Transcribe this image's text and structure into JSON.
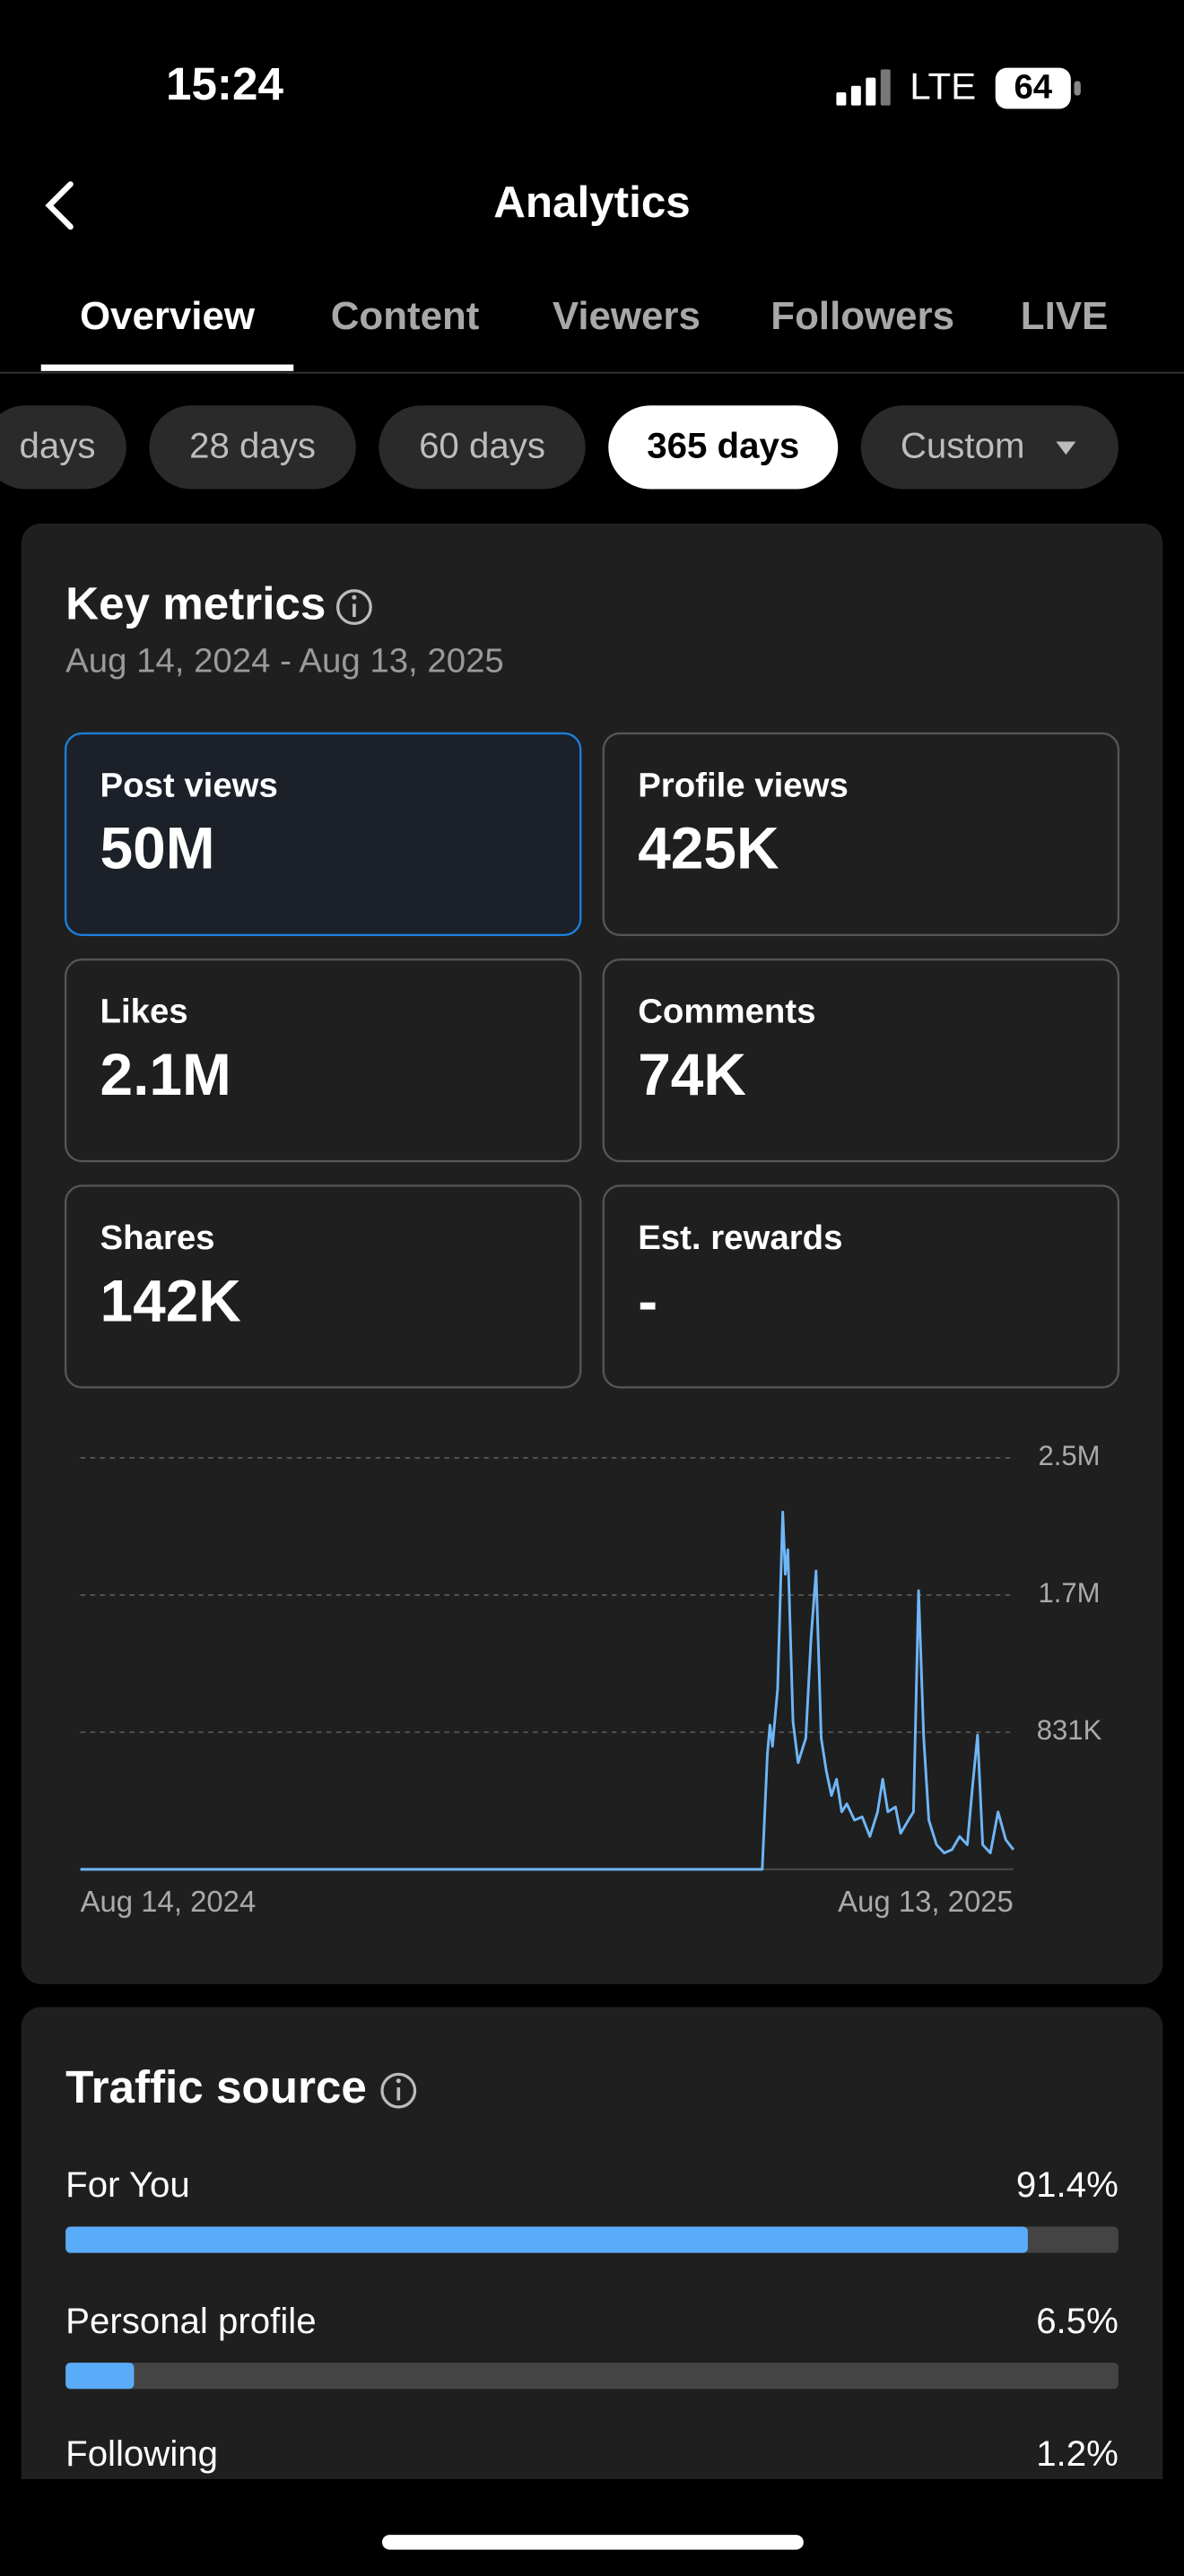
{
  "status_bar": {
    "time": "15:24",
    "network": "LTE",
    "battery": "64"
  },
  "header": {
    "title": "Analytics"
  },
  "tabs": [
    "Overview",
    "Content",
    "Viewers",
    "Followers",
    "LIVE"
  ],
  "ranges": [
    "days",
    "28 days",
    "60 days",
    "365 days",
    "Custom"
  ],
  "key_metrics": {
    "title": "Key metrics",
    "date_range": "Aug 14, 2024 - Aug 13, 2025",
    "cards": [
      {
        "label": "Post views",
        "value": "50M"
      },
      {
        "label": "Profile views",
        "value": "425K"
      },
      {
        "label": "Likes",
        "value": "2.1M"
      },
      {
        "label": "Comments",
        "value": "74K"
      },
      {
        "label": "Shares",
        "value": "142K"
      },
      {
        "label": "Est. rewards",
        "value": "-"
      }
    ]
  },
  "chart_data": {
    "type": "line",
    "x": [
      0,
      266,
      268,
      269,
      270,
      272,
      274,
      275,
      276,
      278,
      280,
      283,
      285,
      287,
      289,
      291,
      293,
      295,
      297,
      299,
      302,
      305,
      308,
      311,
      313,
      315,
      318,
      320,
      323,
      325,
      327,
      329,
      331,
      334,
      337,
      340,
      343,
      346,
      348,
      350,
      352,
      355,
      358,
      361,
      364
    ],
    "series": [
      {
        "color": "#6fb6f7",
        "values": [
          0,
          0,
          695000,
          874000,
          745000,
          1093000,
          2165000,
          1788000,
          1937000,
          894000,
          646000,
          795000,
          1390000,
          1808000,
          795000,
          596000,
          447000,
          546000,
          348000,
          397000,
          298000,
          318000,
          199000,
          348000,
          546000,
          348000,
          378000,
          218000,
          298000,
          348000,
          1688000,
          795000,
          298000,
          149000,
          99000,
          119000,
          199000,
          149000,
          497000,
          814000,
          149000,
          99000,
          348000,
          179000,
          119000
        ]
      }
    ],
    "xlim": [
      0,
      364
    ],
    "xticks": [
      {
        "value": 0,
        "label": "Aug 14, 2024"
      },
      {
        "value": 364,
        "label": "Aug 13, 2025"
      }
    ],
    "ylim": [
      0,
      2493000
    ],
    "yticks": [
      {
        "value": 831000,
        "label": "831K"
      },
      {
        "value": 1662000,
        "label": "1.7M"
      },
      {
        "value": 2493000,
        "label": "2.5M"
      }
    ],
    "grid": true
  },
  "traffic_source": {
    "title": "Traffic source",
    "items": [
      {
        "name": "For You",
        "value": 91.4,
        "label": "91.4%"
      },
      {
        "name": "Personal profile",
        "value": 6.5,
        "label": "6.5%"
      },
      {
        "name": "Following",
        "value": 1.2,
        "label": "1.2%"
      }
    ]
  }
}
